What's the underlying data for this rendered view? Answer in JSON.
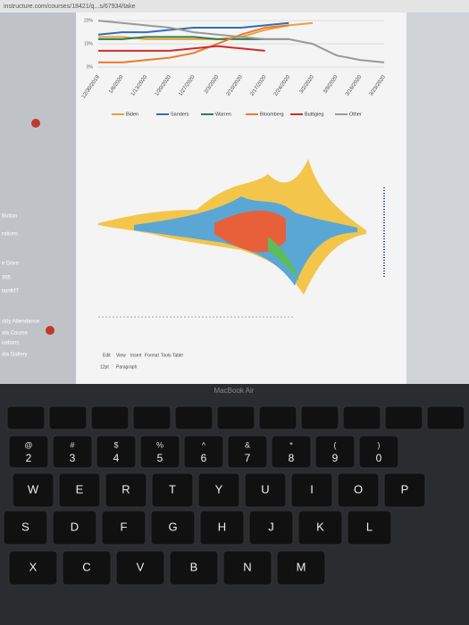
{
  "browser": {
    "url": "instructure.com/courses/18421/q...s/67934/take"
  },
  "sidebar": {
    "items": [
      "Button",
      "rations",
      "e Drive",
      "365",
      "tionKIT",
      "ckly Attendance",
      "ala Course",
      "uations",
      "dia Gallery"
    ]
  },
  "chart_data": {
    "type": "line",
    "x": [
      "12/30/2019",
      "1/6/2020",
      "1/13/2020",
      "1/20/2020",
      "1/27/2020",
      "2/3/2020",
      "2/10/2020",
      "2/17/2020",
      "2/24/2020",
      "3/2/2020",
      "3/9/2020",
      "3/16/2020",
      "3/23/2020"
    ],
    "ylim": [
      0,
      22
    ],
    "yticks": [
      {
        "value": 0,
        "label": "0%"
      },
      {
        "value": 10,
        "label": "10%"
      },
      {
        "value": 20,
        "label": "20%"
      }
    ],
    "series": [
      {
        "name": "Biden",
        "color": "#e8a33a",
        "values": [
          13,
          13,
          12,
          12,
          12,
          12,
          13,
          16,
          18,
          19,
          null,
          null,
          null
        ]
      },
      {
        "name": "Sanders",
        "color": "#2f6fb5",
        "values": [
          14,
          15,
          15,
          16,
          17,
          17,
          17,
          18,
          19,
          null,
          null,
          null,
          null
        ]
      },
      {
        "name": "Warren",
        "color": "#2e7d4f",
        "values": [
          12,
          12,
          13,
          13,
          13,
          12,
          12,
          12,
          12,
          null,
          null,
          null,
          null
        ]
      },
      {
        "name": "Bloomberg",
        "color": "#f07a2a",
        "values": [
          2,
          2,
          3,
          4,
          6,
          10,
          14,
          17,
          18,
          null,
          null,
          null,
          null
        ]
      },
      {
        "name": "Buttigieg",
        "color": "#d42a2a",
        "values": [
          7,
          7,
          7,
          7,
          8,
          9,
          8,
          7,
          null,
          null,
          null,
          null,
          null
        ]
      },
      {
        "name": "Other",
        "color": "#999999",
        "values": [
          20,
          19,
          18,
          17,
          15,
          14,
          13,
          12,
          12,
          10,
          5,
          3,
          2
        ]
      }
    ]
  },
  "editor": {
    "menu": [
      "Edit",
      "View",
      "Insert",
      "Format",
      "Tools",
      "Table"
    ],
    "font_size": "12pt",
    "block": "Paragraph"
  },
  "laptop": {
    "label": "MacBook Air"
  },
  "keyboard": {
    "number_row": [
      {
        "sym": "@",
        "num": "2"
      },
      {
        "sym": "#",
        "num": "3"
      },
      {
        "sym": "$",
        "num": "4"
      },
      {
        "sym": "%",
        "num": "5"
      },
      {
        "sym": "^",
        "num": "6"
      },
      {
        "sym": "&",
        "num": "7"
      },
      {
        "sym": "*",
        "num": "8"
      },
      {
        "sym": "(",
        "num": "9"
      },
      {
        "sym": ")",
        "num": "0"
      }
    ],
    "letter_rows": [
      [
        "W",
        "E",
        "R",
        "T",
        "Y",
        "U",
        "I",
        "O",
        "P"
      ],
      [
        "S",
        "D",
        "F",
        "G",
        "H",
        "J",
        "K",
        "L"
      ],
      [
        "X",
        "C",
        "V",
        "B",
        "N",
        "M"
      ]
    ]
  }
}
